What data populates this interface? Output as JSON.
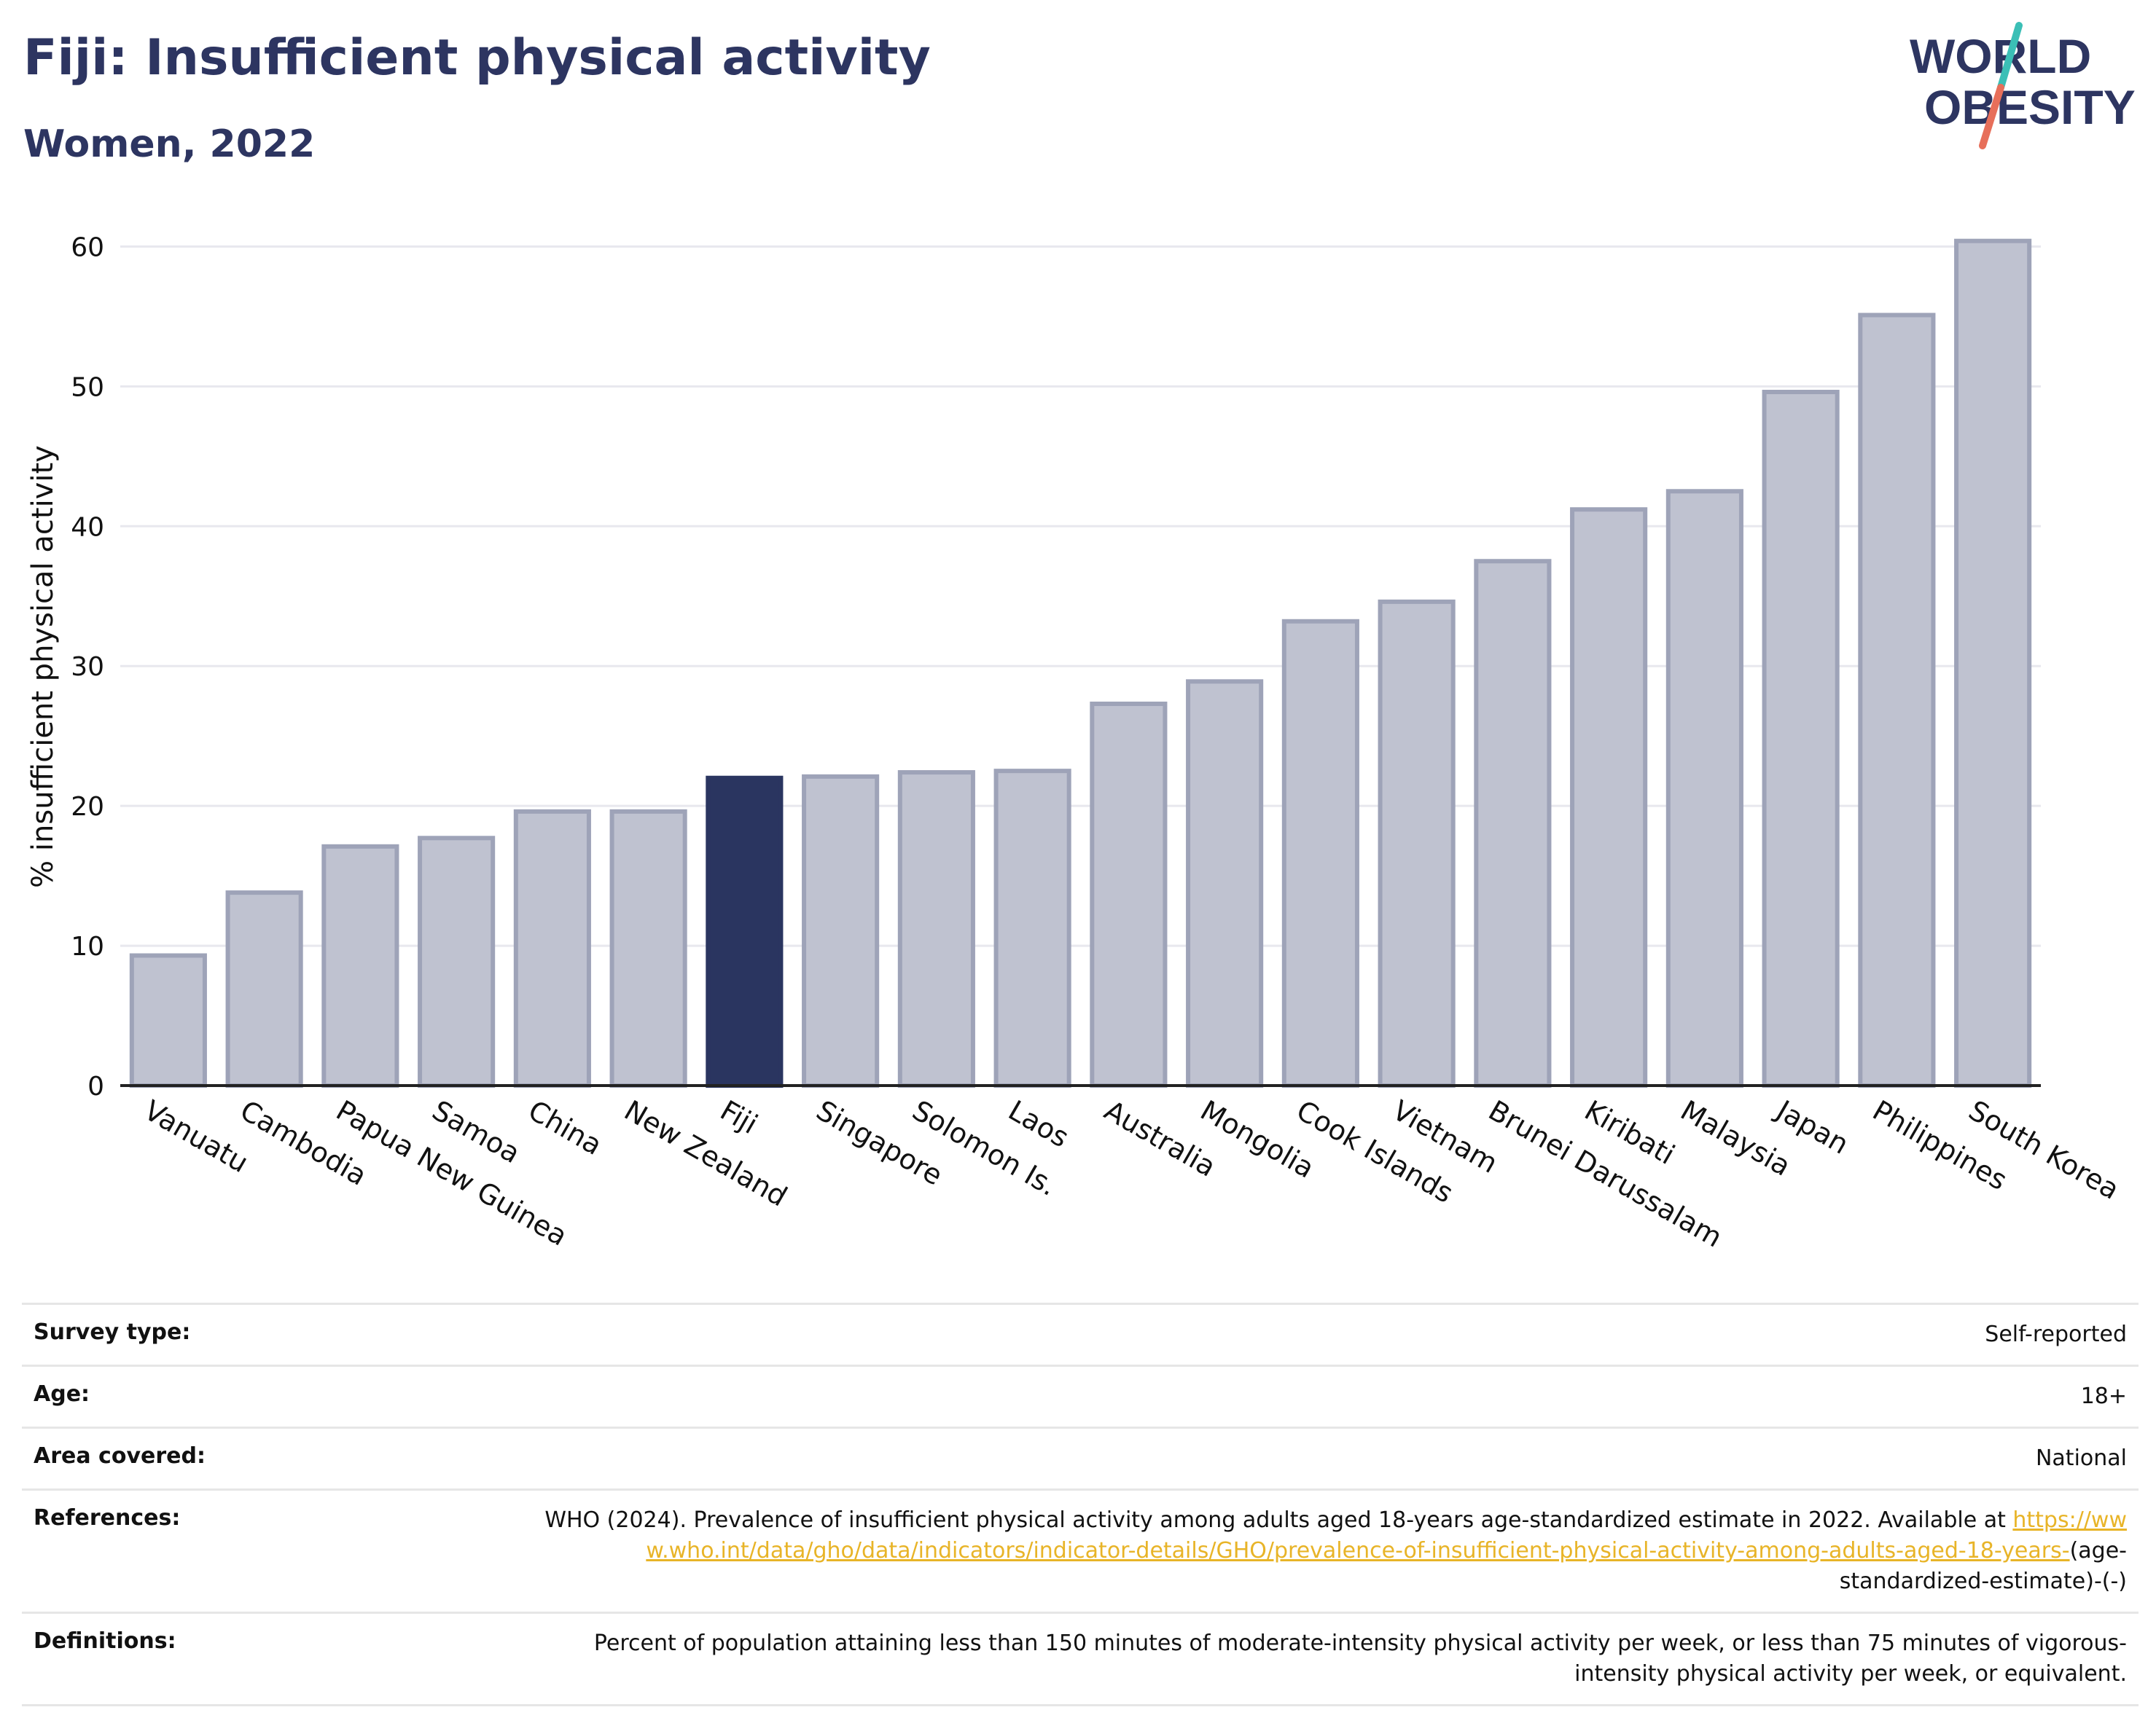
{
  "header": {
    "title": "Fiji: Insufficient physical activity",
    "subtitle": "Women, 2022"
  },
  "logo": {
    "line1": "WORLD",
    "line2": "OBESITY",
    "colors": {
      "text": "#2d3561",
      "slash_teal": "#3bbfb6",
      "slash_coral": "#e76f5a"
    }
  },
  "chart_data": {
    "type": "bar",
    "title": "Fiji: Insufficient physical activity",
    "subtitle": "Women, 2022",
    "xlabel": "",
    "ylabel": "% insufficient physical activity",
    "ylim": [
      0,
      62
    ],
    "yticks": [
      0,
      10,
      20,
      30,
      40,
      50,
      60
    ],
    "grid": true,
    "highlight": "Fiji",
    "colors": {
      "bar": "#bfc2d0",
      "bar_outline": "#9ea3b8",
      "highlight": "#2a3560"
    },
    "categories": [
      "Vanuatu",
      "Cambodia",
      "Papua New Guinea",
      "Samoa",
      "China",
      "New Zealand",
      "Fiji",
      "Singapore",
      "Solomon Is.",
      "Laos",
      "Australia",
      "Mongolia",
      "Cook Islands",
      "Vietnam",
      "Brunei Darussalam",
      "Kiribati",
      "Malaysia",
      "Japan",
      "Philippines",
      "South Korea"
    ],
    "values": [
      9.3,
      13.8,
      17.1,
      17.7,
      19.6,
      19.6,
      22.0,
      22.1,
      22.4,
      22.5,
      27.3,
      28.9,
      33.2,
      34.6,
      37.5,
      41.2,
      42.5,
      49.6,
      55.1,
      60.4
    ]
  },
  "meta": {
    "survey_label": "Survey type:",
    "survey_value": "Self-reported",
    "age_label": "Age:",
    "age_value": "18+",
    "area_label": "Area covered:",
    "area_value": "National",
    "references_label": "References:",
    "references_text": "WHO (2024). Prevalence of insufficient physical activity among adults aged 18-years age-standardized estimate in 2022. Available at",
    "references_link": "https://www.who.int/data/gho/data/indicators/indicator-details/GHO/prevalence-of-insufficient-physical-activity-among-adults-aged-18-years-",
    "references_suffix": "(age-standardized-estimate)-(-)",
    "definitions_label": "Definitions:",
    "definitions_value": "Percent of population attaining less than 150 minutes of moderate-intensity physical activity per week, or less than 75 minutes of vigorous-intensity physical activity per week, or equivalent."
  }
}
